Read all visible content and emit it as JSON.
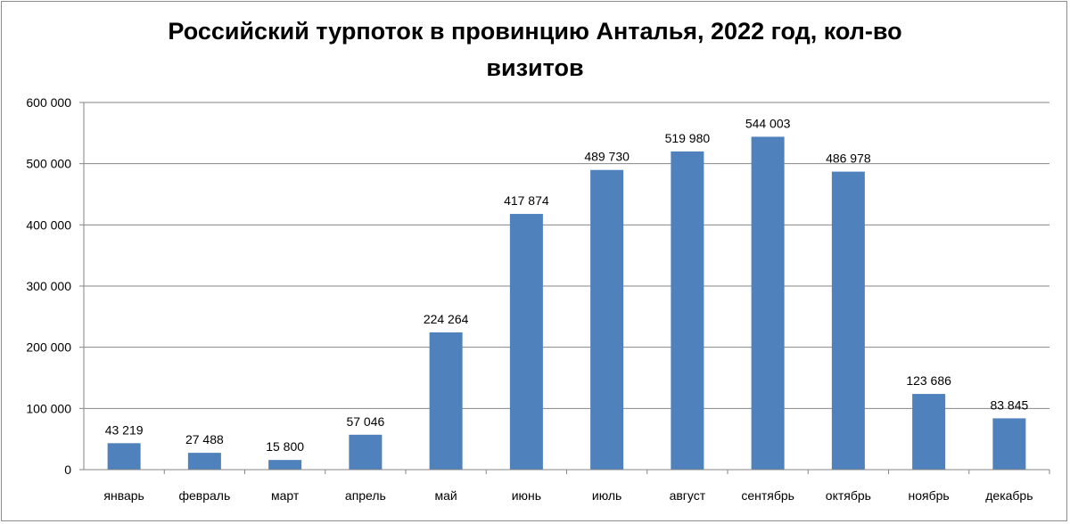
{
  "chart_data": {
    "type": "bar",
    "title_line1": "Российский турпоток в провинцию Анталья, 2022 год, кол-во",
    "title_line2": "визитов",
    "categories": [
      "январь",
      "февраль",
      "март",
      "апрель",
      "май",
      "июнь",
      "июль",
      "август",
      "сентябрь",
      "октябрь",
      "ноябрь",
      "декабрь"
    ],
    "values": [
      43219,
      27488,
      15800,
      57046,
      224264,
      417874,
      489730,
      519980,
      544003,
      486978,
      123686,
      83845
    ],
    "value_labels": [
      "43 219",
      "27 488",
      "15 800",
      "57 046",
      "224 264",
      "417 874",
      "489 730",
      "519 980",
      "544 003",
      "486 978",
      "123 686",
      "83 845"
    ],
    "y_ticks": [
      0,
      100000,
      200000,
      300000,
      400000,
      500000,
      600000
    ],
    "y_tick_labels": [
      "0",
      "100 000",
      "200 000",
      "300 000",
      "400 000",
      "500 000",
      "600 000"
    ],
    "ylim": [
      0,
      600000
    ],
    "grid": true,
    "legend": "none",
    "bar_color": "#4f81bd",
    "xlabel": "",
    "ylabel": ""
  }
}
